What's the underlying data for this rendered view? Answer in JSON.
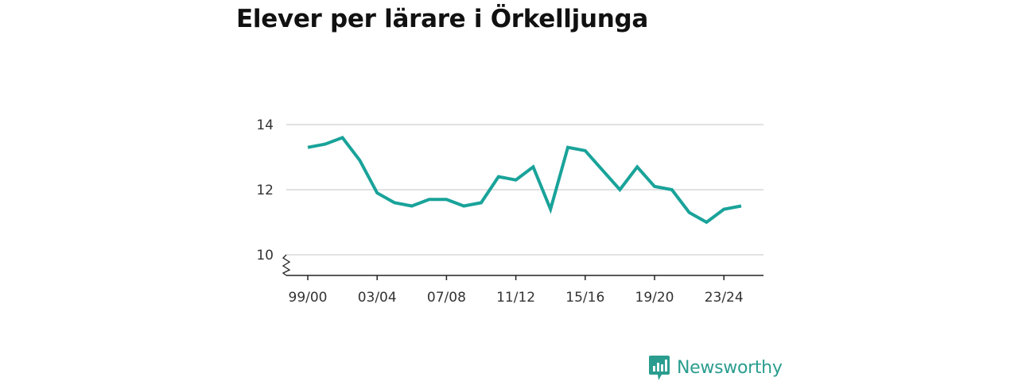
{
  "chart_data": {
    "type": "line",
    "title": "Elever per lärare i Örkelljunga",
    "xlabel": "",
    "ylabel": "",
    "x": [
      "99/00",
      "00/01",
      "01/02",
      "02/03",
      "03/04",
      "04/05",
      "05/06",
      "06/07",
      "07/08",
      "08/09",
      "09/10",
      "10/11",
      "11/12",
      "12/13",
      "13/14",
      "14/15",
      "15/16",
      "16/17",
      "17/18",
      "18/19",
      "19/20",
      "20/21",
      "21/22",
      "22/23",
      "23/24",
      "24/25"
    ],
    "x_tick_labels": [
      "99/00",
      "03/04",
      "07/08",
      "11/12",
      "15/16",
      "19/20",
      "23/24"
    ],
    "series": [
      {
        "values": [
          13.3,
          13.4,
          13.6,
          12.9,
          11.9,
          11.6,
          11.5,
          11.7,
          11.7,
          11.5,
          11.6,
          12.4,
          12.3,
          12.7,
          11.4,
          13.3,
          13.2,
          12.6,
          12.0,
          12.7,
          12.1,
          12.0,
          11.3,
          11.0,
          11.4,
          11.5
        ],
        "color": "#19a39a"
      }
    ],
    "y_ticks": [
      10,
      12,
      14
    ],
    "ylim": [
      9.35,
      14.2
    ],
    "axis_break": true,
    "grid": true
  },
  "branding": {
    "name": "Newsworthy",
    "color": "#2a9d8f",
    "icon": "newsworthy-logo-icon"
  }
}
